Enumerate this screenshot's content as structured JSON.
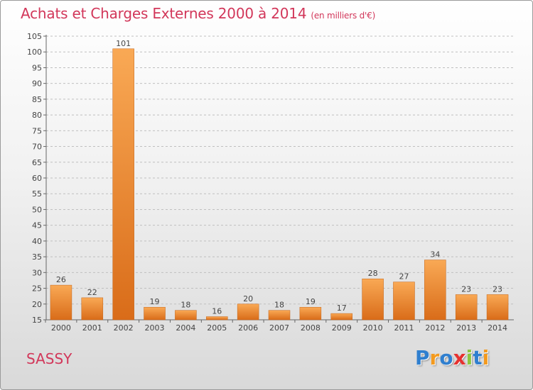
{
  "header": {
    "title": "Achats et Charges Externes 2000 à 2014",
    "subtitle": "(en milliers d'€)"
  },
  "footer": {
    "place": "SASSY",
    "logo": "Proxiti"
  },
  "colors": {
    "title": "#d2375a",
    "bar_light": "#f9a955",
    "bar_dark": "#d96c19",
    "grid": "#bfbfbf"
  },
  "chart_data": {
    "type": "bar",
    "title": "Achats et Charges Externes 2000 à 2014",
    "subtitle": "(en milliers d'€)",
    "categories": [
      "2000",
      "2001",
      "2002",
      "2003",
      "2004",
      "2005",
      "2006",
      "2007",
      "2008",
      "2009",
      "2010",
      "2011",
      "2012",
      "2013",
      "2014"
    ],
    "values": [
      26,
      22,
      101,
      19,
      18,
      16,
      20,
      18,
      19,
      17,
      28,
      27,
      34,
      23,
      23
    ],
    "ylim": [
      15,
      105
    ],
    "yticks": [
      15,
      20,
      25,
      30,
      35,
      40,
      45,
      50,
      55,
      60,
      65,
      70,
      75,
      80,
      85,
      90,
      95,
      100,
      105
    ],
    "grid": true,
    "legend": "none"
  }
}
